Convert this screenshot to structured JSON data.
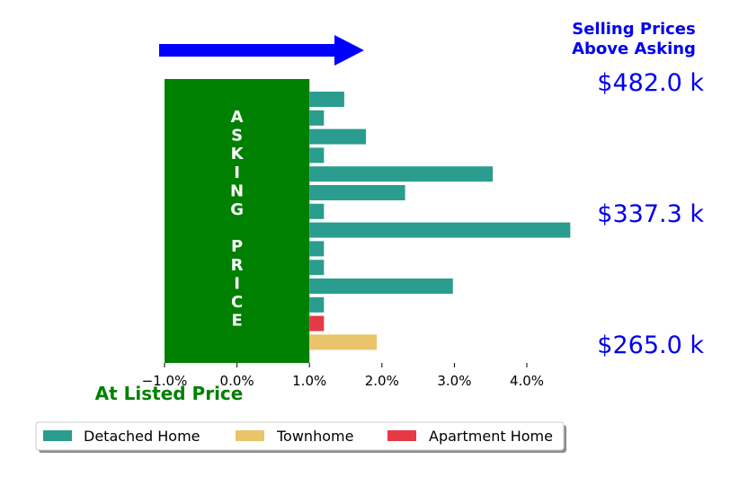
{
  "chart_data": {
    "type": "bar",
    "orientation": "horizontal",
    "xlim": [
      -1.0,
      4.6
    ],
    "x_ticks": [
      "−1.0%",
      "0.0%",
      "1.0%",
      "2.0%",
      "3.0%",
      "4.0%"
    ],
    "x_tick_values": [
      -1.0,
      0.0,
      1.0,
      2.0,
      3.0,
      4.0
    ],
    "asking_block": {
      "letters": [
        "A",
        "S",
        "K",
        "I",
        "N",
        "G",
        " ",
        "P",
        "R",
        "I",
        "C",
        "E"
      ],
      "from": -1.0,
      "to": 1.0,
      "color": "#008000"
    },
    "bars": [
      {
        "value": 1.48,
        "type": "Detached Home"
      },
      {
        "value": 1.2,
        "type": "Detached Home"
      },
      {
        "value": 1.78,
        "type": "Detached Home"
      },
      {
        "value": 1.2,
        "type": "Detached Home"
      },
      {
        "value": 3.53,
        "type": "Detached Home"
      },
      {
        "value": 2.32,
        "type": "Detached Home"
      },
      {
        "value": 1.2,
        "type": "Detached Home"
      },
      {
        "value": 4.6,
        "type": "Detached Home"
      },
      {
        "value": 1.2,
        "type": "Detached Home"
      },
      {
        "value": 1.2,
        "type": "Detached Home"
      },
      {
        "value": 2.98,
        "type": "Detached Home"
      },
      {
        "value": 1.2,
        "type": "Detached Home"
      },
      {
        "value": 1.2,
        "type": "Apartment Home"
      },
      {
        "value": 1.93,
        "type": "Townhome"
      }
    ],
    "price_labels": [
      "$482.0 k",
      "$337.3 k",
      "$265.0 k"
    ],
    "title_lines": [
      "Selling Prices",
      "Above Asking"
    ],
    "bottom_label": "At Listed Price",
    "legend": [
      {
        "name": "Detached Home",
        "color": "#2a9d8f"
      },
      {
        "name": "Townhome",
        "color": "#e9c46a"
      },
      {
        "name": "Apartment Home",
        "color": "#e63946"
      }
    ],
    "legend_placement": "bottom-left",
    "arrow_color": "#0000ff",
    "grid": false
  }
}
